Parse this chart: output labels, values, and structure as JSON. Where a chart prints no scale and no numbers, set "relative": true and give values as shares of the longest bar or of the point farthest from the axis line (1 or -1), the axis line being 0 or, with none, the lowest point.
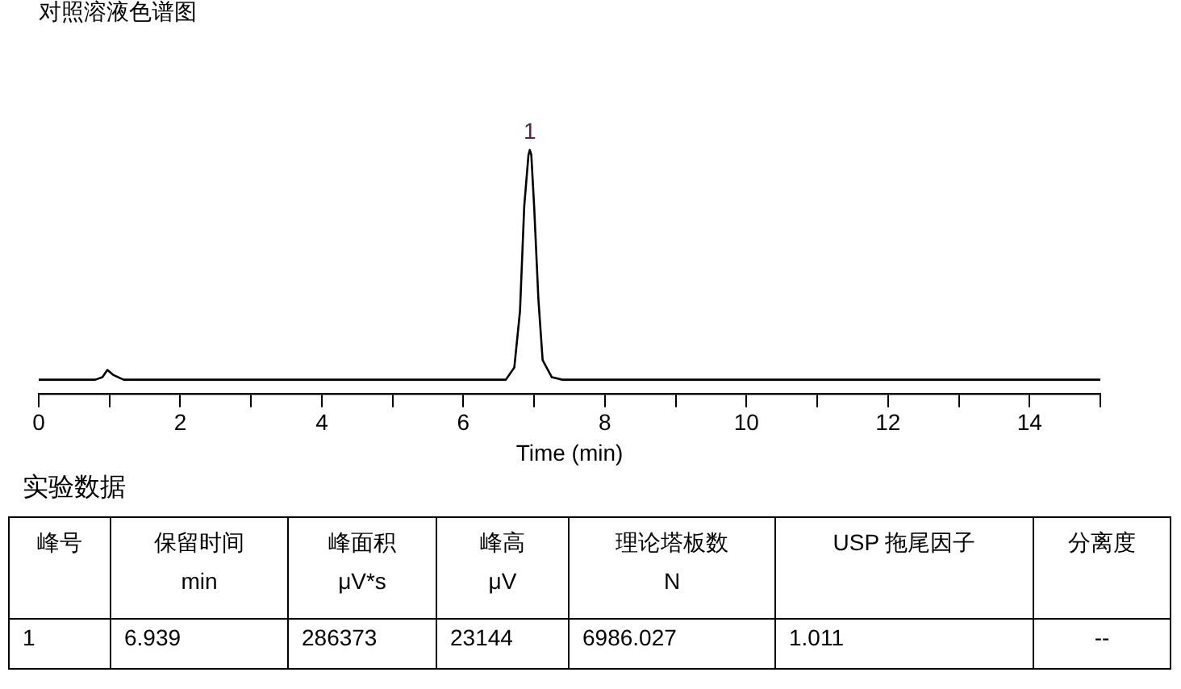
{
  "chart_data": {
    "type": "line",
    "title": "对照溶液色谱图",
    "xlabel": "Time (min)",
    "relative": true,
    "x": [
      0,
      0.8,
      0.9,
      0.97,
      1.05,
      1.2,
      6.6,
      6.72,
      6.8,
      6.86,
      6.92,
      6.939,
      6.96,
      7.0,
      7.06,
      7.12,
      7.25,
      7.4,
      15
    ],
    "series": [
      {
        "color": "#000000",
        "values": [
          0.06,
          0.06,
          0.07,
          0.1,
          0.08,
          0.06,
          0.06,
          0.11,
          0.34,
          0.77,
          0.98,
          1,
          0.98,
          0.77,
          0.39,
          0.14,
          0.07,
          0.06,
          0.06
        ]
      }
    ],
    "xlim": [
      0,
      15
    ],
    "xticks": [
      0,
      {
        "value": 1,
        "label": null
      },
      2,
      {
        "value": 3,
        "label": null
      },
      4,
      {
        "value": 5,
        "label": null
      },
      6,
      {
        "value": 7,
        "label": null
      },
      8,
      {
        "value": 9,
        "label": null
      },
      10,
      {
        "value": 11,
        "label": null
      },
      12,
      {
        "value": 13,
        "label": null
      },
      14,
      {
        "value": 15,
        "label": null
      }
    ],
    "grid": false,
    "legend": false,
    "marker": "none",
    "line_style": "solid",
    "annotations": [
      {
        "text": "1",
        "x": 6.939,
        "y": 1
      },
      "实验数据",
      "峰号",
      "保留时间\nmin",
      "峰面积\nμV*s",
      "峰高\nμV",
      "理论塔板数\nN",
      "USP 拖尾因子",
      "分离度",
      "1",
      "6.939",
      "286373",
      "23144",
      "6986.027",
      "1.011",
      "--"
    ]
  }
}
